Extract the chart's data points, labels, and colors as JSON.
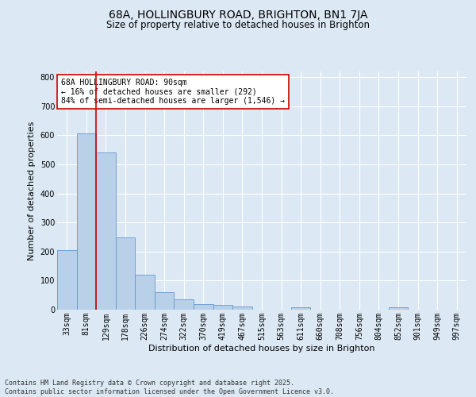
{
  "title": "68A, HOLLINGBURY ROAD, BRIGHTON, BN1 7JA",
  "subtitle": "Size of property relative to detached houses in Brighton",
  "xlabel": "Distribution of detached houses by size in Brighton",
  "ylabel": "Number of detached properties",
  "categories": [
    "33sqm",
    "81sqm",
    "129sqm",
    "178sqm",
    "226sqm",
    "274sqm",
    "322sqm",
    "370sqm",
    "419sqm",
    "467sqm",
    "515sqm",
    "563sqm",
    "611sqm",
    "660sqm",
    "708sqm",
    "756sqm",
    "804sqm",
    "852sqm",
    "901sqm",
    "949sqm",
    "997sqm"
  ],
  "values": [
    204,
    607,
    542,
    250,
    120,
    60,
    35,
    20,
    17,
    12,
    0,
    0,
    7,
    0,
    0,
    0,
    0,
    8,
    0,
    0,
    0
  ],
  "bar_color": "#b8d0e8",
  "bar_edge_color": "#6699cc",
  "vline_x": 1.5,
  "vline_color": "#cc0000",
  "ylim": [
    0,
    820
  ],
  "yticks": [
    0,
    100,
    200,
    300,
    400,
    500,
    600,
    700,
    800
  ],
  "annotation_text": "68A HOLLINGBURY ROAD: 90sqm\n← 16% of detached houses are smaller (292)\n84% of semi-detached houses are larger (1,546) →",
  "annotation_box_facecolor": "#ffffff",
  "annotation_box_edgecolor": "#cc0000",
  "bg_color": "#dce9f5",
  "plot_bg_color": "#dce9f5",
  "grid_color": "#ffffff",
  "title_fontsize": 10,
  "subtitle_fontsize": 8.5,
  "ylabel_fontsize": 8,
  "xlabel_fontsize": 8,
  "tick_fontsize": 7,
  "annotation_fontsize": 7,
  "footer_line1": "Contains HM Land Registry data © Crown copyright and database right 2025.",
  "footer_line2": "Contains public sector information licensed under the Open Government Licence v3.0.",
  "footer_fontsize": 6
}
